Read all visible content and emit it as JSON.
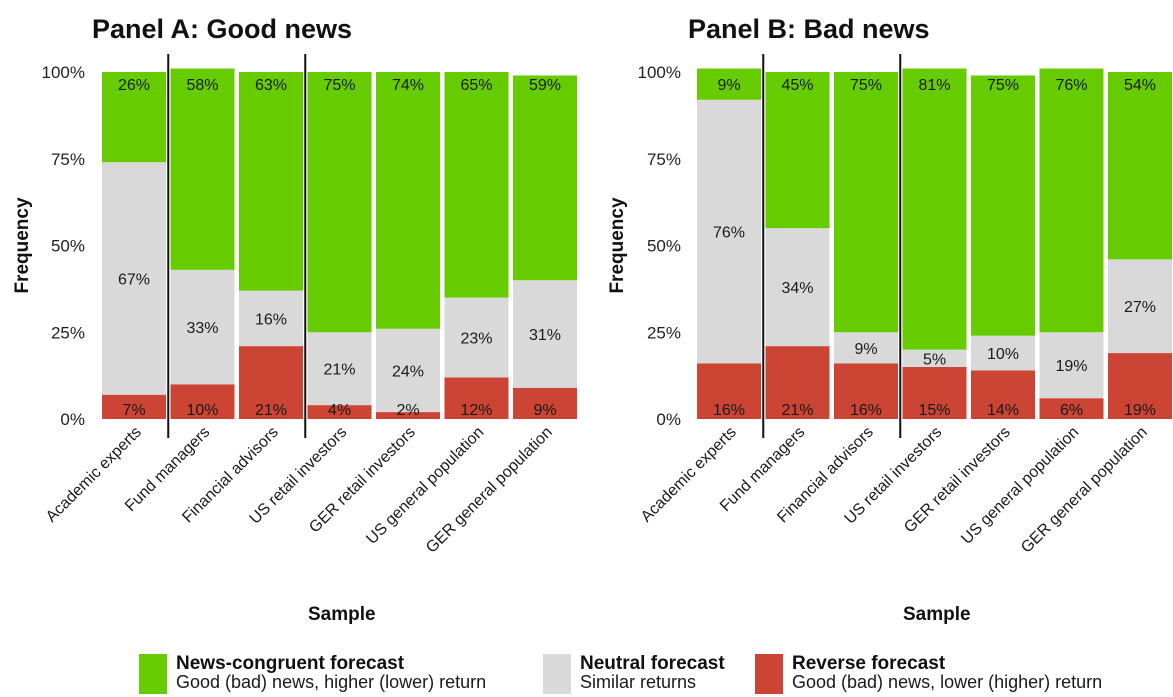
{
  "chart_data": {
    "type": "bar",
    "stacked": true,
    "categories": [
      "Academic experts",
      "Fund managers",
      "Financial advisors",
      "US retail investors",
      "GER retail investors",
      "US general population",
      "GER general population"
    ],
    "xlabel": "Sample",
    "ylabel": "Frequency",
    "ylim": [
      0,
      100
    ],
    "yticks": [
      "0%",
      "25%",
      "50%",
      "75%",
      "100%"
    ],
    "panels": [
      {
        "title": "Panel A: Good news",
        "series": [
          {
            "key": "reverse",
            "values": [
              7,
              10,
              21,
              4,
              2,
              12,
              9
            ],
            "labels": [
              "7%",
              "10%",
              "21%",
              "4%",
              "2%",
              "12%",
              "9%"
            ]
          },
          {
            "key": "neutral",
            "values": [
              67,
              33,
              16,
              21,
              24,
              23,
              31
            ],
            "labels": [
              "67%",
              "33%",
              "16%",
              "21%",
              "24%",
              "23%",
              "31%"
            ]
          },
          {
            "key": "congruent",
            "values": [
              26,
              58,
              63,
              75,
              74,
              65,
              59
            ],
            "labels": [
              "26%",
              "58%",
              "63%",
              "75%",
              "74%",
              "65%",
              "59%"
            ]
          }
        ]
      },
      {
        "title": "Panel B: Bad news",
        "series": [
          {
            "key": "reverse",
            "values": [
              16,
              21,
              16,
              15,
              14,
              6,
              19
            ],
            "labels": [
              "16%",
              "21%",
              "16%",
              "15%",
              "14%",
              "6%",
              "19%"
            ]
          },
          {
            "key": "neutral",
            "values": [
              76,
              34,
              9,
              5,
              10,
              19,
              27
            ],
            "labels": [
              "76%",
              "34%",
              "9%",
              "5%",
              "10%",
              "19%",
              "27%"
            ]
          },
          {
            "key": "congruent",
            "values": [
              9,
              45,
              75,
              81,
              75,
              76,
              54
            ],
            "labels": [
              "9%",
              "45%",
              "75%",
              "81%",
              "75%",
              "76%",
              "54%"
            ]
          }
        ]
      }
    ],
    "group_dividers_after_index": [
      0,
      2
    ],
    "legend": [
      {
        "key": "congruent",
        "title": "News-congruent forecast",
        "description": "Good (bad) news, higher (lower) return",
        "color": "#66cc00"
      },
      {
        "key": "neutral",
        "title": "Neutral forecast",
        "description": "Similar returns",
        "color": "#d9d9d9"
      },
      {
        "key": "reverse",
        "title": "Reverse forecast",
        "description": "Good (bad) news, lower (higher) return",
        "color": "#cc4433"
      }
    ],
    "legend_position": "bottom",
    "grid": false
  }
}
